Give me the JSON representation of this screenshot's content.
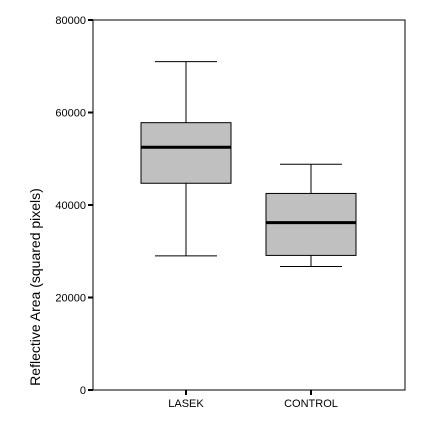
{
  "chart_data": {
    "type": "box",
    "title": "",
    "xlabel": "",
    "ylabel": "Reflective Area (squared pixels)",
    "ylim": [
      0,
      80000
    ],
    "yticks": [
      0,
      20000,
      40000,
      60000,
      80000
    ],
    "ytick_labels": [
      "0",
      "20000",
      "40000",
      "60000",
      "80000"
    ],
    "categories": [
      "LASEK",
      "CONTROL"
    ],
    "boxes": [
      {
        "category": "LASEK",
        "min": 29000,
        "q1": 44700,
        "median": 52500,
        "q3": 57800,
        "max": 71000
      },
      {
        "category": "CONTROL",
        "min": 26700,
        "q1": 29100,
        "median": 36200,
        "q3": 42500,
        "max": 48800
      }
    ],
    "box_fill": "#c0c0c0",
    "line_color": "#000000",
    "grid": false,
    "legend": "none"
  }
}
